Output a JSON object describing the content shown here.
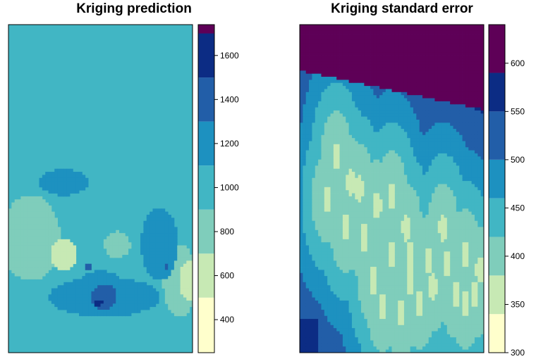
{
  "palette": [
    "#ffffcc",
    "#c7e9b4",
    "#7fcdbb",
    "#41b6c4",
    "#1d91c0",
    "#225ea8",
    "#0c2c84",
    "#5e0057"
  ],
  "chart_data": [
    {
      "type": "heatmap",
      "title": "Kriging prediction",
      "legend": {
        "breaks": [
          250,
          500,
          700,
          900,
          1100,
          1300,
          1500,
          1700,
          1740
        ],
        "ticks": [
          400,
          600,
          800,
          1000,
          1200,
          1400,
          1600
        ],
        "range": [
          250,
          1740
        ]
      },
      "background_level": 3,
      "blobs": [
        {
          "x": 0.12,
          "y": 0.65,
          "rx": 0.16,
          "ry": 0.13,
          "level": 2
        },
        {
          "x": 0.3,
          "y": 0.7,
          "rx": 0.07,
          "ry": 0.05,
          "level": 1
        },
        {
          "x": 0.93,
          "y": 0.78,
          "rx": 0.09,
          "ry": 0.11,
          "level": 2
        },
        {
          "x": 0.98,
          "y": 0.78,
          "rx": 0.05,
          "ry": 0.06,
          "level": 1
        },
        {
          "x": 0.59,
          "y": 0.67,
          "rx": 0.07,
          "ry": 0.04,
          "level": 2
        },
        {
          "x": 0.3,
          "y": 0.48,
          "rx": 0.13,
          "ry": 0.04,
          "level": 4
        },
        {
          "x": 0.82,
          "y": 0.67,
          "rx": 0.1,
          "ry": 0.11,
          "level": 4
        },
        {
          "x": 0.52,
          "y": 0.83,
          "rx": 0.3,
          "ry": 0.06,
          "level": 4
        },
        {
          "x": 0.5,
          "y": 0.79,
          "rx": 0.12,
          "ry": 0.04,
          "level": 4
        },
        {
          "x": 0.52,
          "y": 0.83,
          "rx": 0.07,
          "ry": 0.04,
          "level": 5
        },
        {
          "x": 0.49,
          "y": 0.85,
          "rx": 0.02,
          "ry": 0.012,
          "level": 6
        },
        {
          "x": 0.86,
          "y": 0.74,
          "rx": 0.015,
          "ry": 0.01,
          "level": 5
        },
        {
          "x": 0.43,
          "y": 0.74,
          "rx": 0.02,
          "ry": 0.01,
          "level": 5
        }
      ]
    },
    {
      "type": "heatmap",
      "title": "Kriging standard error",
      "legend": {
        "breaks": [
          300,
          340,
          380,
          420,
          460,
          500,
          550,
          590,
          640
        ],
        "ticks": [
          300,
          350,
          400,
          450,
          500,
          550,
          600
        ],
        "range": [
          300,
          640
        ]
      }
    }
  ]
}
